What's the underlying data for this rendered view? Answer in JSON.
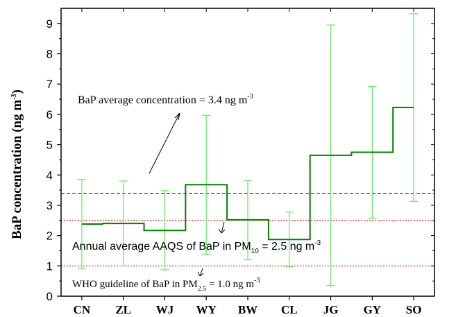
{
  "chart_data": {
    "type": "line",
    "ylabel": "BaP concentration (ng m",
    "ylabel_sup": "-3",
    "ylabel_end": ")",
    "ylim": [
      0,
      9.5
    ],
    "yticks": [
      "0",
      "1",
      "2",
      "3",
      "4",
      "5",
      "6",
      "7",
      "8",
      "9"
    ],
    "categories": [
      "CN",
      "ZL",
      "WJ",
      "WY",
      "BW",
      "CL",
      "JG",
      "GY",
      "SO"
    ],
    "series": [
      {
        "style": "step",
        "color": "#008000",
        "values": [
          2.38,
          2.4,
          2.17,
          3.68,
          2.52,
          1.87,
          4.65,
          4.75,
          6.23
        ],
        "error_low": [
          0.92,
          1.0,
          0.87,
          1.38,
          1.2,
          0.97,
          0.35,
          2.57,
          3.13
        ],
        "error_high": [
          3.85,
          3.8,
          3.48,
          5.97,
          3.82,
          2.78,
          8.95,
          6.92,
          9.32
        ],
        "error_color": "#66ee66"
      }
    ],
    "reference_lines": [
      {
        "y": 3.4,
        "color": "#000080",
        "style": "dashed"
      },
      {
        "y": 2.5,
        "color": "#ff0000",
        "style": "dotted"
      },
      {
        "y": 1.0,
        "color": "#ff0000",
        "style": "dotted"
      }
    ],
    "annotations": {
      "avg": {
        "text": "BaP average concentration = 3.4 ng m",
        "sup": "-3"
      },
      "aaqs": {
        "text": "Annual average AAQS of BaP in PM",
        "sub": "10",
        "text2": " = 2.5 ng m",
        "sup": "-3"
      },
      "who": {
        "text": "WHO guideline of BaP in PM",
        "sub": "2.5",
        "text2": " = 1.0 ng m",
        "sup": "-3"
      }
    }
  }
}
